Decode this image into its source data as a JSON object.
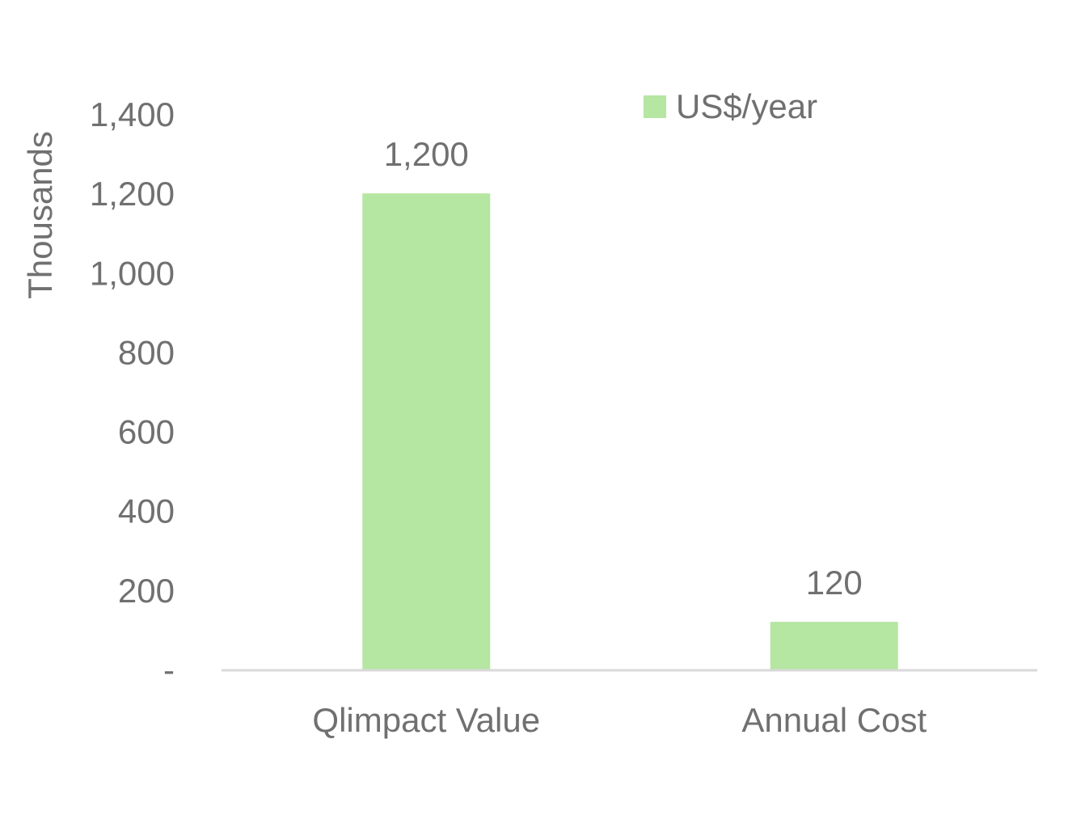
{
  "chart_data": {
    "type": "bar",
    "categories": [
      "Qlimpact Value",
      "Annual Cost"
    ],
    "series": [
      {
        "name": "US$/year",
        "values": [
          1200,
          120
        ],
        "data_labels": [
          "1,200",
          "120"
        ]
      }
    ],
    "title": "",
    "xlabel": "",
    "ylabel": "Thousands",
    "ylim": [
      0,
      1400
    ],
    "yticks": [
      0,
      200,
      400,
      600,
      800,
      1000,
      1200,
      1400
    ],
    "ytick_labels": [
      "-",
      "200",
      "400",
      "600",
      "800",
      "1,000",
      "1,200",
      "1,400"
    ],
    "grid": false,
    "legend_position": "top-right",
    "colors": {
      "bar": "#b5e6a2",
      "text": "#707070",
      "axis_line": "#d9d9d9"
    }
  }
}
